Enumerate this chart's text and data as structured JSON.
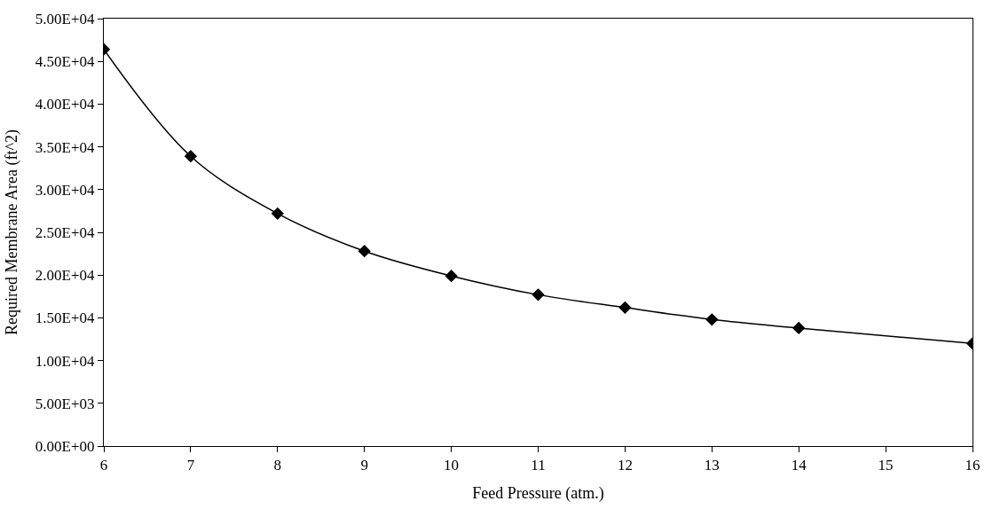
{
  "chart_data": {
    "type": "line",
    "xlabel": "Feed Pressure (atm.)",
    "ylabel": "Required Membrane Area (ft^2)",
    "x": [
      6,
      7,
      8,
      9,
      10,
      11,
      12,
      13,
      14,
      16
    ],
    "series": [
      {
        "color": "#000000",
        "values": [
          46400,
          33900,
          27200,
          22800,
          19900,
          17700,
          16200,
          14800,
          13800,
          12000
        ]
      }
    ],
    "xlim": [
      6,
      16
    ],
    "xticks": [
      6,
      7,
      8,
      9,
      10,
      11,
      12,
      13,
      14,
      15,
      16
    ],
    "ylim": [
      0,
      50000
    ],
    "yticks": [
      {
        "value": 0,
        "label": "0.00E+00"
      },
      {
        "value": 5000,
        "label": "5.00E+03"
      },
      {
        "value": 10000,
        "label": "1.00E+04"
      },
      {
        "value": 15000,
        "label": "1.50E+04"
      },
      {
        "value": 20000,
        "label": "2.00E+04"
      },
      {
        "value": 25000,
        "label": "2.50E+04"
      },
      {
        "value": 30000,
        "label": "3.00E+04"
      },
      {
        "value": 35000,
        "label": "3.50E+04"
      },
      {
        "value": 40000,
        "label": "4.00E+04"
      },
      {
        "value": 45000,
        "label": "4.50E+04"
      },
      {
        "value": 50000,
        "label": "5.00E+04"
      }
    ],
    "marker": "diamond",
    "line_style": "solid"
  }
}
